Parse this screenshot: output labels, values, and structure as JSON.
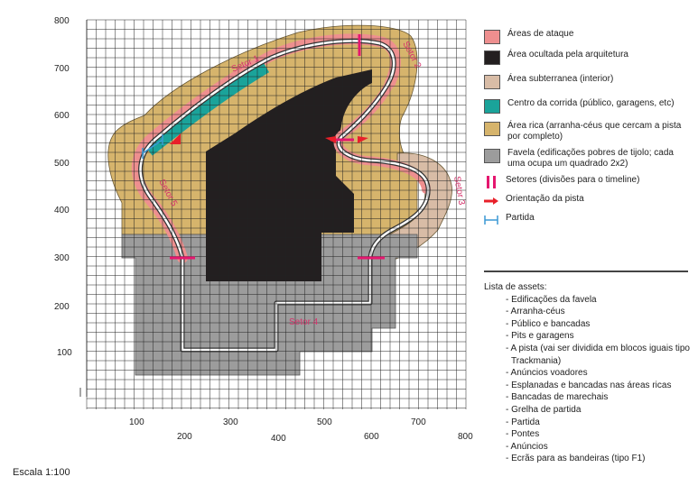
{
  "axes": {
    "y_ticks": [
      "800",
      "700",
      "600",
      "500",
      "400",
      "300",
      "200",
      "100"
    ],
    "x_ticks": [
      "100",
      "200",
      "300",
      "400",
      "500",
      "600",
      "700",
      "800"
    ]
  },
  "sectors": [
    "Setor 1",
    "Setor 2",
    "Setor 3",
    "Setor 4",
    "Setor 5"
  ],
  "legend": [
    {
      "label": "Áreas de ataque",
      "kind": "box",
      "color": "#ee8f8f"
    },
    {
      "label": "Área ocultada pela arquitetura",
      "kind": "box",
      "color": "#231f20"
    },
    {
      "label": "Área subterranea (interior)",
      "kind": "box",
      "color": "#d8bca6"
    },
    {
      "label": "Centro da corrida (público, garagens, etc)",
      "kind": "box",
      "color": "#1aa39a"
    },
    {
      "label": "Área rica (arranha-céus que cercam a pista por completo)",
      "kind": "box",
      "color": "#d6b46c"
    },
    {
      "label": "Favela (edificações pobres de tijolo; cada uma ocupa um quadrado 2x2)",
      "kind": "box",
      "color": "#9c9c9c"
    },
    {
      "label": "Setores (divisões para o timeline)",
      "kind": "sector-icon",
      "color": "#e5176f"
    },
    {
      "label": "Orientação da pista",
      "kind": "arrow-icon",
      "color": "#e8202a"
    },
    {
      "label": "Partida",
      "kind": "start-icon",
      "color": "#3b99d4"
    }
  ],
  "assets": {
    "title": "Lista de assets:",
    "items": [
      "- Edificações da favela",
      "- Arranha-céus",
      "- Público e bancadas",
      "- Pits e garagens",
      "- A pista (vai ser dividida em blocos iguais tipo Trackmania)",
      "- Anúncios voadores",
      "- Esplanadas e bancadas nas áreas ricas",
      "- Bancadas de marechais",
      "- Grelha de partida",
      "- Partida",
      "- Pontes",
      "- Anúncios",
      "- Ecrãs para as bandeiras (tipo F1)"
    ]
  },
  "scale": "Escala 1:100"
}
